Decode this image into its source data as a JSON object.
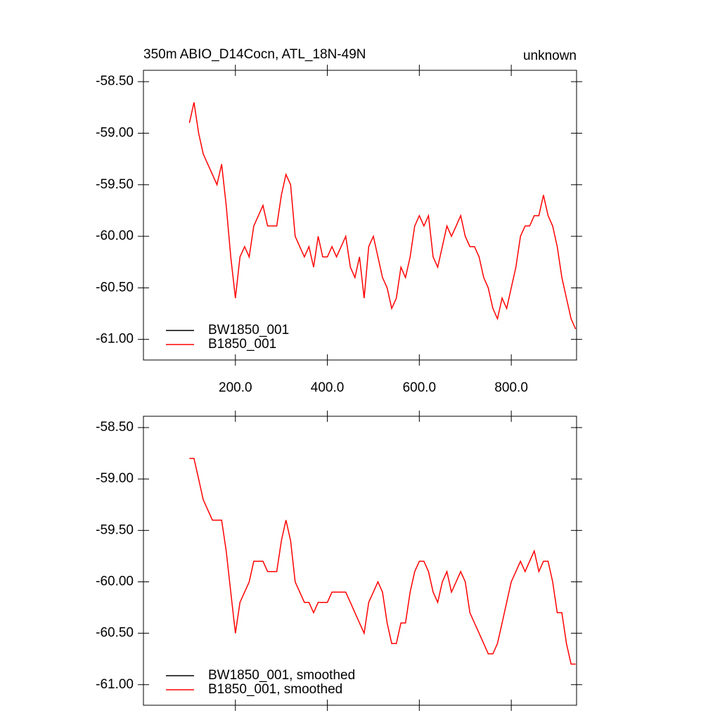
{
  "chart_data": [
    {
      "type": "line",
      "title": "350m ABIO_D14Cocn, ATL_18N-49N",
      "right_title": "unknown",
      "x": [
        100,
        110,
        120,
        130,
        140,
        150,
        160,
        170,
        180,
        190,
        200,
        210,
        220,
        230,
        240,
        250,
        260,
        270,
        280,
        290,
        300,
        310,
        320,
        330,
        340,
        350,
        360,
        370,
        380,
        390,
        400,
        410,
        420,
        430,
        440,
        450,
        460,
        470,
        480,
        490,
        500,
        510,
        520,
        530,
        540,
        550,
        560,
        570,
        580,
        590,
        600,
        610,
        620,
        630,
        640,
        650,
        660,
        670,
        680,
        690,
        700,
        710,
        720,
        730,
        740,
        750,
        760,
        770,
        780,
        790,
        800,
        810,
        820,
        830,
        840,
        850,
        860,
        870,
        880,
        890,
        900,
        910,
        920,
        930,
        940
      ],
      "series": [
        {
          "name": "BW1850_001",
          "color": "#000000",
          "values": [
            null,
            null,
            null,
            null,
            null,
            null,
            null,
            null,
            null,
            null,
            null,
            null,
            null,
            null,
            null,
            null,
            null,
            null,
            null,
            null,
            null,
            null,
            null,
            null,
            null,
            null,
            null,
            null,
            null,
            null,
            null,
            null,
            null,
            null,
            null,
            null,
            null,
            null,
            null,
            null,
            null,
            null,
            null,
            null,
            null,
            null,
            null,
            null,
            null,
            null,
            null,
            null,
            null,
            null,
            null,
            null,
            null,
            null,
            null,
            null,
            null,
            null,
            null,
            null,
            null,
            null,
            null,
            null,
            null,
            null,
            null,
            null,
            null,
            null,
            null,
            null,
            null,
            null,
            null,
            null,
            null,
            null,
            null,
            null,
            null
          ]
        },
        {
          "name": "B1850_001",
          "color": "#ff0000",
          "values": [
            -58.9,
            -58.7,
            -59.0,
            -59.2,
            -59.3,
            -59.4,
            -59.5,
            -59.3,
            -59.7,
            -60.2,
            -60.6,
            -60.2,
            -60.1,
            -60.2,
            -59.9,
            -59.8,
            -59.7,
            -59.9,
            -59.9,
            -59.9,
            -59.6,
            -59.4,
            -59.5,
            -60.0,
            -60.1,
            -60.2,
            -60.1,
            -60.3,
            -60.0,
            -60.2,
            -60.2,
            -60.1,
            -60.2,
            -60.1,
            -60.0,
            -60.3,
            -60.4,
            -60.2,
            -60.6,
            -60.1,
            -60.0,
            -60.2,
            -60.4,
            -60.5,
            -60.7,
            -60.6,
            -60.3,
            -60.4,
            -60.2,
            -59.9,
            -59.8,
            -59.9,
            -59.8,
            -60.2,
            -60.3,
            -60.1,
            -59.9,
            -60.0,
            -59.9,
            -59.8,
            -60.0,
            -60.1,
            -60.1,
            -60.2,
            -60.4,
            -60.5,
            -60.7,
            -60.8,
            -60.6,
            -60.7,
            -60.5,
            -60.3,
            -60.0,
            -59.9,
            -59.9,
            -59.8,
            -59.8,
            -59.6,
            -59.8,
            -59.9,
            -60.1,
            -60.4,
            -60.6,
            -60.8,
            -60.9
          ]
        }
      ],
      "xlim": [
        0,
        942
      ],
      "ylim": [
        -61.2,
        -58.39
      ],
      "xticks": [
        {
          "value": 200,
          "label": "200.0"
        },
        {
          "value": 400,
          "label": "400.0"
        },
        {
          "value": 600,
          "label": "600.0"
        },
        {
          "value": 800,
          "label": "800.0"
        }
      ],
      "yticks": [
        {
          "value": -58.5,
          "label": "-58.50"
        },
        {
          "value": -59,
          "label": "-59.00"
        },
        {
          "value": -59.5,
          "label": "-59.50"
        },
        {
          "value": -60,
          "label": "-60.00"
        },
        {
          "value": -60.5,
          "label": "-60.50"
        },
        {
          "value": -61,
          "label": "-61.00"
        }
      ],
      "show_x_tick_labels": true,
      "legend": "lower left"
    },
    {
      "type": "line",
      "x": [
        100,
        110,
        120,
        130,
        140,
        150,
        160,
        170,
        180,
        190,
        200,
        210,
        220,
        230,
        240,
        250,
        260,
        270,
        280,
        290,
        300,
        310,
        320,
        330,
        340,
        350,
        360,
        370,
        380,
        390,
        400,
        410,
        420,
        430,
        440,
        450,
        460,
        470,
        480,
        490,
        500,
        510,
        520,
        530,
        540,
        550,
        560,
        570,
        580,
        590,
        600,
        610,
        620,
        630,
        640,
        650,
        660,
        670,
        680,
        690,
        700,
        710,
        720,
        730,
        740,
        750,
        760,
        770,
        780,
        790,
        800,
        810,
        820,
        830,
        840,
        850,
        860,
        870,
        880,
        890,
        900,
        910,
        920,
        930,
        940
      ],
      "series": [
        {
          "name": "BW1850_001, smoothed",
          "color": "#000000",
          "values": [
            null,
            null,
            null,
            null,
            null,
            null,
            null,
            null,
            null,
            null,
            null,
            null,
            null,
            null,
            null,
            null,
            null,
            null,
            null,
            null,
            null,
            null,
            null,
            null,
            null,
            null,
            null,
            null,
            null,
            null,
            null,
            null,
            null,
            null,
            null,
            null,
            null,
            null,
            null,
            null,
            null,
            null,
            null,
            null,
            null,
            null,
            null,
            null,
            null,
            null,
            null,
            null,
            null,
            null,
            null,
            null,
            null,
            null,
            null,
            null,
            null,
            null,
            null,
            null,
            null,
            null,
            null,
            null,
            null,
            null,
            null,
            null,
            null,
            null,
            null,
            null,
            null,
            null,
            null,
            null,
            null,
            null,
            null,
            null,
            null
          ]
        },
        {
          "name": "B1850_001, smoothed",
          "color": "#ff0000",
          "values": [
            -58.8,
            -58.8,
            -59.0,
            -59.2,
            -59.3,
            -59.4,
            -59.4,
            -59.4,
            -59.7,
            -60.1,
            -60.5,
            -60.2,
            -60.1,
            -60.0,
            -59.8,
            -59.8,
            -59.8,
            -59.9,
            -59.9,
            -59.9,
            -59.6,
            -59.4,
            -59.6,
            -60.0,
            -60.1,
            -60.2,
            -60.2,
            -60.3,
            -60.2,
            -60.2,
            -60.2,
            -60.1,
            -60.1,
            -60.1,
            -60.1,
            -60.2,
            -60.3,
            -60.4,
            -60.5,
            -60.2,
            -60.1,
            -60.0,
            -60.1,
            -60.4,
            -60.6,
            -60.6,
            -60.4,
            -60.4,
            -60.1,
            -59.9,
            -59.8,
            -59.8,
            -59.9,
            -60.1,
            -60.2,
            -60.0,
            -59.9,
            -60.1,
            -60.0,
            -59.9,
            -60.0,
            -60.3,
            -60.4,
            -60.5,
            -60.6,
            -60.7,
            -60.7,
            -60.6,
            -60.4,
            -60.2,
            -60.0,
            -59.9,
            -59.8,
            -59.9,
            -59.8,
            -59.7,
            -59.9,
            -59.8,
            -59.8,
            -60.0,
            -60.3,
            -60.3,
            -60.6,
            -60.8,
            -60.8
          ]
        }
      ],
      "xlim": [
        0,
        942
      ],
      "ylim": [
        -61.2,
        -58.39
      ],
      "xticks": [
        200,
        400,
        600,
        800
      ],
      "yticks": [
        {
          "value": -58.5,
          "label": "-58.50"
        },
        {
          "value": -59,
          "label": "-59.00"
        },
        {
          "value": -59.5,
          "label": "-59.50"
        },
        {
          "value": -60,
          "label": "-60.00"
        },
        {
          "value": -60.5,
          "label": "-60.50"
        },
        {
          "value": -61,
          "label": "-61.00"
        }
      ],
      "show_x_tick_labels": false,
      "legend": "lower left"
    }
  ]
}
